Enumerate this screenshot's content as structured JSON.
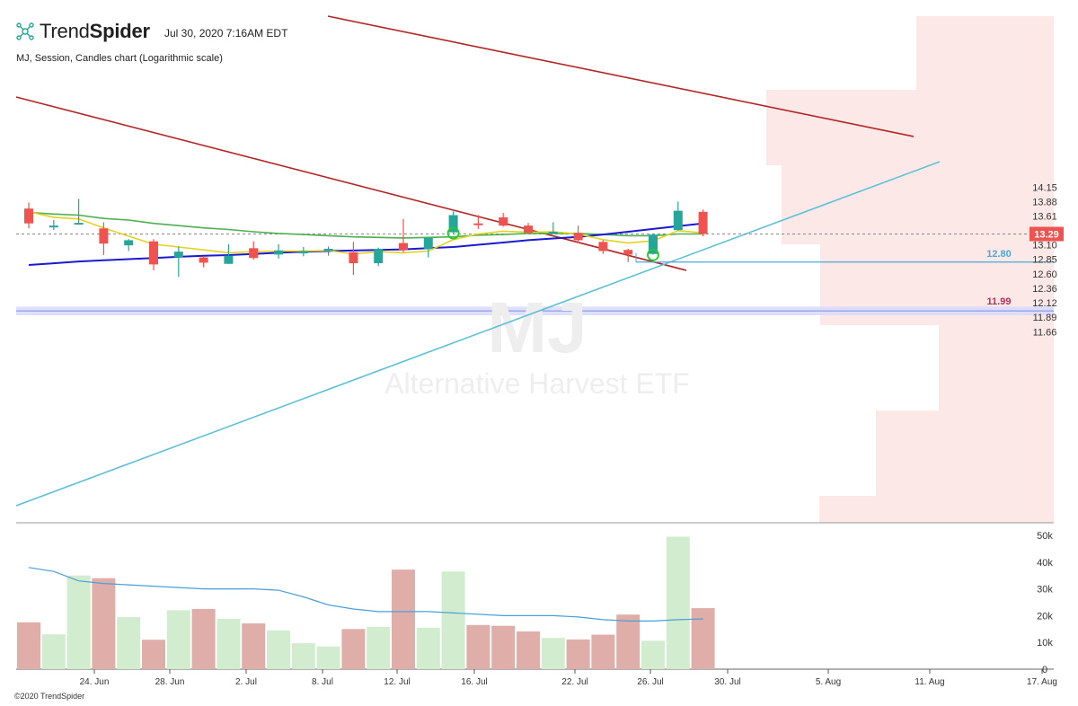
{
  "header": {
    "brand_part1": "Trend",
    "brand_part2": "Spider",
    "date": "Jul 30, 2020 7:16AM EDT",
    "subtitle": "MJ, Session, Candles chart (Logarithmic scale)"
  },
  "footer": {
    "copyright": "©2020 TrendSpider"
  },
  "colors": {
    "up": "#26a69a",
    "down": "#ef5350",
    "vol_up": "#d2ecd0",
    "vol_down": "#e0aea8",
    "sma_fast": "#e5d21f",
    "sma_mid": "#4caf50",
    "sma_slow": "#1a1ad0",
    "trend_red": "#b52424",
    "trend_cyan": "#5bc0d8",
    "support": "#4aa8d8",
    "zone": "#d9d9fb",
    "volume_profile": "#fde8e8",
    "vol_ma": "#4a9fdb"
  },
  "chart_data": {
    "type": "candlestick",
    "symbol": "MJ",
    "watermark_symbol": "MJ",
    "watermark_name": "Alternative Harvest ETF",
    "scale": "logarithmic",
    "y_range": [
      11.57,
      14.3
    ],
    "y_ticks": [
      "14.15",
      "13.88",
      "13.61",
      "13.35",
      "13.10",
      "12.85",
      "12.60",
      "12.36",
      "12.12",
      "11.89",
      "11.66"
    ],
    "x_ticks": [
      "24. Jun",
      "28. Jun",
      "2. Jul",
      "8. Jul",
      "12. Jul",
      "16. Jul",
      "22. Jul",
      "26. Jul",
      "30. Jul",
      "5. Aug",
      "11. Aug",
      "17. Aug"
    ],
    "last_price": "13.29",
    "support_level": "12.80",
    "zone_level": "11.99",
    "zone_range": [
      11.92,
      12.06
    ],
    "candles": [
      {
        "o": 13.75,
        "h": 13.86,
        "l": 13.39,
        "c": 13.48
      },
      {
        "o": 13.44,
        "h": 13.54,
        "l": 13.36,
        "c": 13.44
      },
      {
        "o": 13.48,
        "h": 13.93,
        "l": 13.47,
        "c": 13.49
      },
      {
        "o": 13.39,
        "h": 13.5,
        "l": 12.92,
        "c": 13.12
      },
      {
        "o": 13.09,
        "h": 13.2,
        "l": 12.99,
        "c": 13.18
      },
      {
        "o": 13.16,
        "h": 13.2,
        "l": 12.66,
        "c": 12.76
      },
      {
        "o": 12.88,
        "h": 13.07,
        "l": 12.55,
        "c": 12.98
      },
      {
        "o": 12.88,
        "h": 12.9,
        "l": 12.71,
        "c": 12.79
      },
      {
        "o": 12.77,
        "h": 13.11,
        "l": 12.77,
        "c": 12.91
      },
      {
        "o": 13.04,
        "h": 13.16,
        "l": 12.84,
        "c": 12.87
      },
      {
        "o": 12.93,
        "h": 13.11,
        "l": 12.86,
        "c": 13.0
      },
      {
        "o": 12.95,
        "h": 13.06,
        "l": 12.9,
        "c": 12.99
      },
      {
        "o": 12.99,
        "h": 13.07,
        "l": 12.91,
        "c": 13.03
      },
      {
        "o": 12.97,
        "h": 13.15,
        "l": 12.58,
        "c": 12.78
      },
      {
        "o": 12.78,
        "h": 13.05,
        "l": 12.73,
        "c": 13.03
      },
      {
        "o": 13.13,
        "h": 13.56,
        "l": 12.97,
        "c": 13.01
      },
      {
        "o": 13.03,
        "h": 13.22,
        "l": 12.88,
        "c": 13.22
      },
      {
        "o": 13.32,
        "h": 13.7,
        "l": 13.3,
        "c": 13.63
      },
      {
        "o": 13.48,
        "h": 13.63,
        "l": 13.38,
        "c": 13.45
      },
      {
        "o": 13.59,
        "h": 13.67,
        "l": 13.42,
        "c": 13.44
      },
      {
        "o": 13.44,
        "h": 13.49,
        "l": 13.3,
        "c": 13.31
      },
      {
        "o": 13.33,
        "h": 13.5,
        "l": 13.31,
        "c": 13.33
      },
      {
        "o": 13.31,
        "h": 13.44,
        "l": 13.13,
        "c": 13.18
      },
      {
        "o": 13.15,
        "h": 13.18,
        "l": 12.94,
        "c": 12.99
      },
      {
        "o": 13.01,
        "h": 13.03,
        "l": 12.8,
        "c": 12.93
      },
      {
        "o": 12.94,
        "h": 13.29,
        "l": 12.93,
        "c": 13.28
      },
      {
        "o": 13.36,
        "h": 13.88,
        "l": 13.35,
        "c": 13.71
      },
      {
        "o": 13.69,
        "h": 13.73,
        "l": 13.25,
        "c": 13.29
      }
    ],
    "sma_fast": [
      13.69,
      13.59,
      13.56,
      13.4,
      13.25,
      13.11,
      13.06,
      13.01,
      12.96,
      12.98,
      12.99,
      12.99,
      13.0,
      12.94,
      12.98,
      12.96,
      12.99,
      13.19,
      13.29,
      13.34,
      13.32,
      13.33,
      13.29,
      13.19,
      13.13,
      13.17,
      13.35,
      13.31
    ],
    "sma_mid": [
      13.68,
      13.65,
      13.63,
      13.57,
      13.54,
      13.48,
      13.44,
      13.4,
      13.37,
      13.33,
      13.3,
      13.28,
      13.26,
      13.24,
      13.23,
      13.22,
      13.23,
      13.24,
      13.27,
      13.28,
      13.3,
      13.3,
      13.3,
      13.28,
      13.26,
      13.26,
      13.29,
      13.29
    ],
    "sma_slow": [
      12.75,
      12.78,
      12.81,
      12.83,
      12.85,
      12.87,
      12.89,
      12.91,
      12.92,
      12.94,
      12.96,
      12.98,
      12.99,
      13.0,
      13.01,
      13.02,
      13.04,
      13.06,
      13.1,
      13.14,
      13.18,
      13.21,
      13.24,
      13.28,
      13.33,
      13.38,
      13.43,
      13.48
    ],
    "signal_circles": [
      17,
      25
    ],
    "volume": {
      "y_ticks": [
        "50k",
        "40k",
        "30k",
        "20k",
        "10k",
        "0"
      ],
      "y_max": 50000,
      "values": [
        17500,
        13000,
        35000,
        34000,
        19500,
        11000,
        22000,
        22500,
        18800,
        17100,
        14500,
        9700,
        8500,
        15000,
        15800,
        37200,
        15500,
        36500,
        16500,
        16200,
        14100,
        11700,
        11100,
        12900,
        20400,
        10600,
        49500,
        22800
      ],
      "ma": [
        38000,
        36500,
        33000,
        32000,
        31500,
        31000,
        30500,
        30000,
        30000,
        30000,
        29500,
        27000,
        24000,
        22500,
        21500,
        21500,
        21500,
        21000,
        20500,
        20000,
        20000,
        20000,
        19500,
        18500,
        18000,
        18000,
        18500,
        18800
      ]
    }
  }
}
